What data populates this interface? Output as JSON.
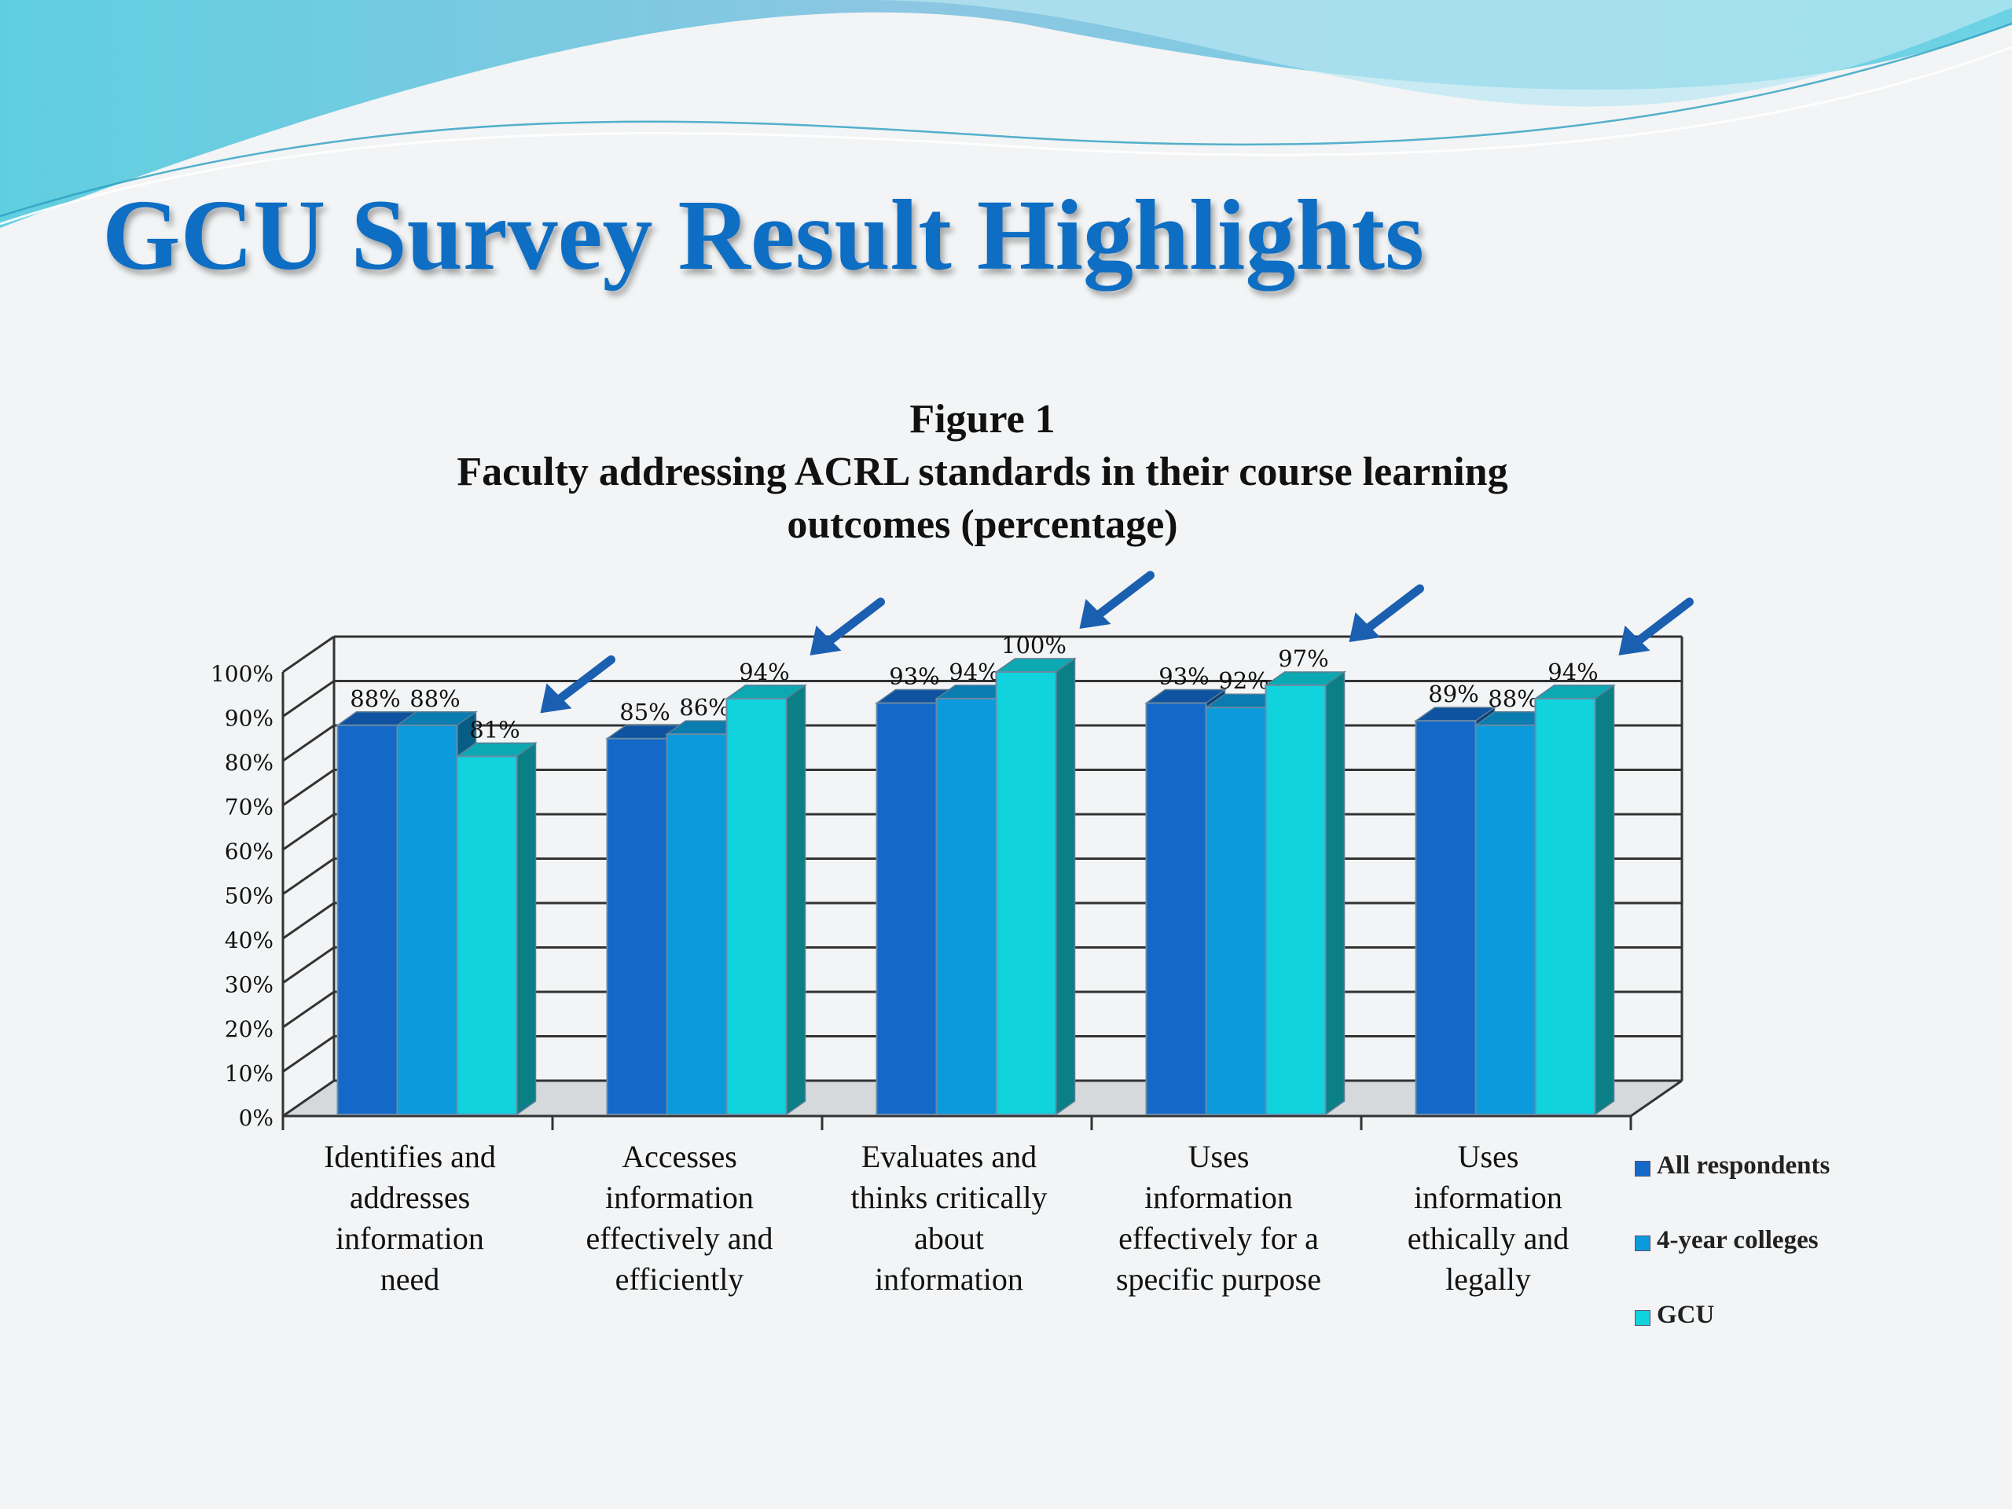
{
  "slide": {
    "title": "GCU Survey Result Highlights"
  },
  "chart_data": {
    "type": "bar",
    "title_lines": [
      "Figure 1",
      "Faculty addressing ACRL standards in their course learning",
      "outcomes (percentage)"
    ],
    "categories": [
      [
        "Identifies and",
        "addresses",
        "information",
        "need"
      ],
      [
        "Accesses",
        "information",
        "effectively and",
        "efficiently"
      ],
      [
        "Evaluates and",
        "thinks critically",
        "about",
        "information"
      ],
      [
        "Uses",
        "information",
        "effectively for a",
        "specific purpose"
      ],
      [
        "Uses",
        "information",
        "ethically and",
        "legally"
      ]
    ],
    "series": [
      {
        "name": "All respondents",
        "values": [
          88,
          85,
          93,
          93,
          89
        ],
        "color": "#1368c8"
      },
      {
        "name": "4-year colleges",
        "values": [
          88,
          86,
          94,
          92,
          88
        ],
        "color": "#0b9bdc"
      },
      {
        "name": "GCU",
        "values": [
          81,
          94,
          100,
          97,
          94
        ],
        "color": "#10d3de"
      }
    ],
    "y_ticks": [
      "0%",
      "10%",
      "20%",
      "30%",
      "40%",
      "50%",
      "60%",
      "70%",
      "80%",
      "90%",
      "100%"
    ],
    "ylim": [
      0,
      100
    ],
    "grid": true,
    "legend_position": "right",
    "annotation_arrows": [
      "GCU",
      "GCU",
      "GCU",
      "GCU",
      "GCU"
    ]
  }
}
